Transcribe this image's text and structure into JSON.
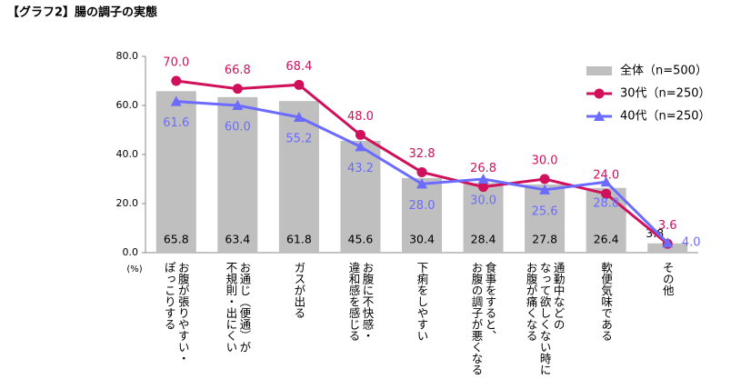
{
  "chart_data": {
    "type": "bar-line",
    "title": "【グラフ2】腸の調子の実態",
    "y_unit": "(%)",
    "categories": [
      [
        "お腹が張りやすい・",
        "ぽっこりする"
      ],
      [
        "お通じ（便通）が",
        "不規則・出にくい"
      ],
      [
        "ガスが出る"
      ],
      [
        "お腹に不快感・",
        "違和感を感じる"
      ],
      [
        "下痢をしやすい"
      ],
      [
        "食事をすると、",
        "お腹の調子が悪くなる"
      ],
      [
        "通勤中などの",
        "なって欲しくない時に",
        "お腹が痛くなる"
      ],
      [
        "軟便気味である"
      ],
      [
        "その他"
      ]
    ],
    "series": [
      {
        "name": "全体（n=500）",
        "type": "bar",
        "color": "#bfbfbf",
        "values": [
          65.8,
          63.4,
          61.8,
          45.6,
          30.4,
          28.4,
          27.8,
          26.4,
          3.8
        ],
        "value_labels": [
          "65.8",
          "63.4",
          "61.8",
          "45.6",
          "30.4",
          "28.4",
          "27.8",
          "26.4",
          "3.8"
        ]
      },
      {
        "name": "30代（n=250）",
        "type": "line",
        "marker": "circle",
        "color": "#d0105a",
        "values": [
          70.0,
          66.8,
          68.4,
          48.0,
          32.8,
          26.8,
          30.0,
          24.0,
          3.6
        ],
        "value_labels": [
          "70.0",
          "66.8",
          "68.4",
          "48.0",
          "32.8",
          "26.8",
          "30.0",
          "24.0",
          "3.6"
        ]
      },
      {
        "name": "40代（n=250）",
        "type": "line",
        "marker": "triangle",
        "color": "#6b6bff",
        "values": [
          61.6,
          60.0,
          55.2,
          43.2,
          28.0,
          30.0,
          25.6,
          28.8,
          4.0
        ],
        "value_labels": [
          "61.6",
          "60.0",
          "55.2",
          "43.2",
          "28.0",
          "30.0",
          "25.6",
          "28.8",
          "4.0"
        ]
      }
    ],
    "ylim": [
      0,
      80
    ],
    "yticks": [
      {
        "value": 0,
        "label": "0.0"
      },
      {
        "value": 20,
        "label": "20.0"
      },
      {
        "value": 40,
        "label": "40.0"
      },
      {
        "value": 60,
        "label": "60.0"
      },
      {
        "value": 80,
        "label": "80.0"
      }
    ]
  }
}
